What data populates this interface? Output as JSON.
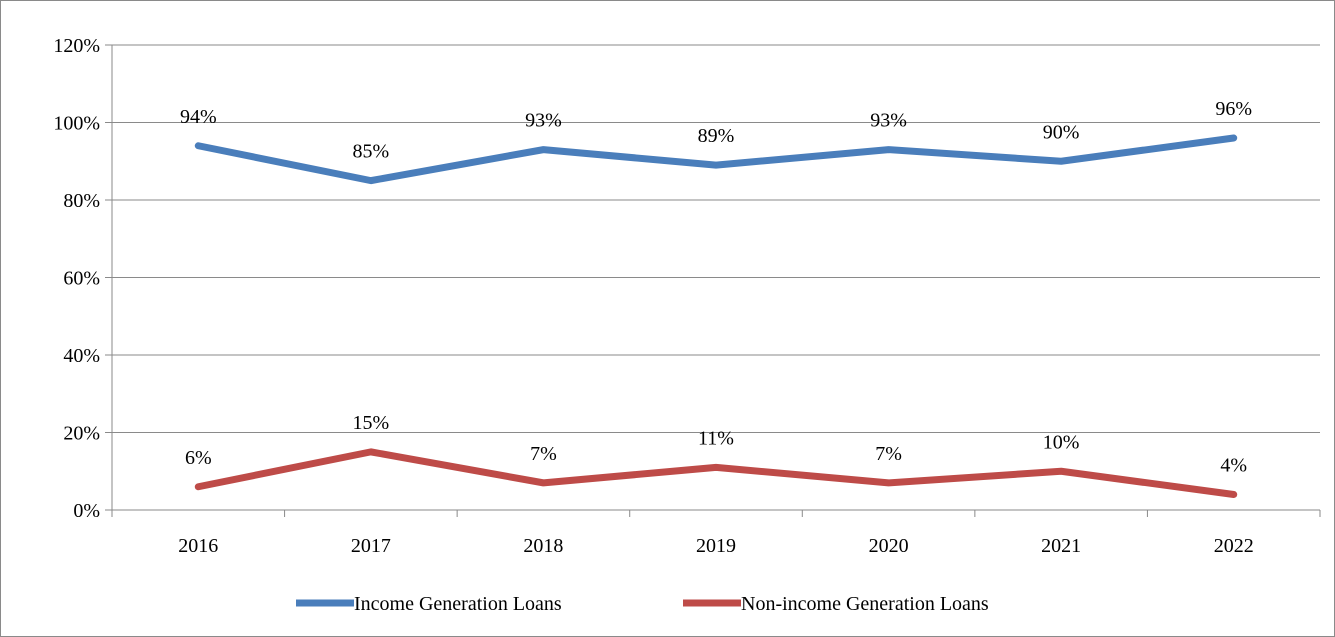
{
  "chart_data": {
    "type": "line",
    "categories": [
      "2016",
      "2017",
      "2018",
      "2019",
      "2020",
      "2021",
      "2022"
    ],
    "series": [
      {
        "name": "Income Generation Loans",
        "values": [
          94,
          85,
          93,
          89,
          93,
          90,
          96
        ],
        "labels": [
          "94%",
          "85%",
          "93%",
          "89%",
          "93%",
          "90%",
          "96%"
        ],
        "color": "#4a7ebb"
      },
      {
        "name": "Non-income Generation Loans",
        "values": [
          6,
          15,
          7,
          11,
          7,
          10,
          4
        ],
        "labels": [
          "6%",
          "15%",
          "7%",
          "11%",
          "7%",
          "10%",
          "4%"
        ],
        "color": "#be4b48"
      }
    ],
    "y_ticks": [
      "0%",
      "20%",
      "40%",
      "60%",
      "80%",
      "100%",
      "120%"
    ],
    "ylim": [
      0,
      120
    ],
    "grid": true,
    "legend_position": "bottom",
    "title": "",
    "xlabel": "",
    "ylabel": ""
  }
}
